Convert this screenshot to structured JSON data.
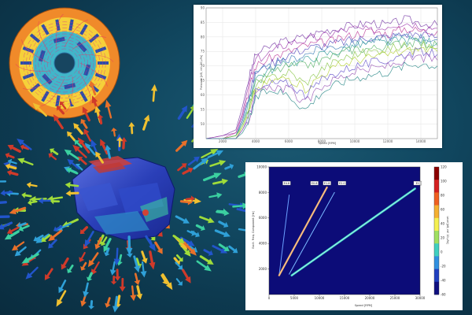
{
  "scene": {
    "background": [
      "#1c5a73",
      "#0a2c3e"
    ]
  },
  "motor_cross_section": {
    "colors": {
      "outer_ring": "#f08a2a",
      "inner_ring": "#f5d03a",
      "core": "#41b6c9",
      "magnets": "#2c4fa8",
      "flux_lines": "#d0308a"
    }
  },
  "vector_field": {
    "colors": [
      "#2255cc",
      "#2fa0d8",
      "#3bd0a0",
      "#9fdc3a",
      "#f0c030",
      "#e8702a",
      "#d03a2a"
    ]
  },
  "noise_order_plot": {
    "background": "#ffffff",
    "xlabel": "Speed [RPM]",
    "ylabel": "Pressure [dB, rel. 20 µPa]",
    "y_ticks": [
      "90",
      "85",
      "80",
      "75",
      "70",
      "65",
      "60",
      "55",
      "50"
    ],
    "x_ticks": [
      "2000",
      "4000",
      "6000",
      "8000",
      "10000",
      "12000",
      "14000"
    ],
    "line_colors": [
      "#7b3fa8",
      "#a23fb0",
      "#c0439c",
      "#5b4fc0",
      "#3f7fb8",
      "#3aa0a0",
      "#5bb46a",
      "#8cc84b",
      "#b6d23a",
      "#6a5acd",
      "#9b59b6",
      "#2e8b8b"
    ]
  },
  "campbell_diagram": {
    "background": "#0c0c78",
    "xlabel": "Speed [RPM]",
    "ylabel": "Excit. Freq. Component [Hz]",
    "colorbar_label": "Level [dB, ref. 20 µPa]",
    "colorbar_ticks": [
      "120",
      "100",
      "80",
      "60",
      "40",
      "20",
      "0",
      "-20",
      "-40",
      "-60"
    ],
    "x_ticks": [
      "0",
      "5000",
      "10000",
      "15000",
      "20000",
      "25000",
      "30000"
    ],
    "y_ticks": [
      "10000",
      "8000",
      "6000",
      "4000",
      "2000"
    ],
    "order_tags": [
      "E4.8",
      "E0.8",
      "E1.8",
      "E2.0",
      "E1"
    ]
  },
  "chart_data": {
    "type": "line",
    "xlabel": "Speed [RPM]",
    "ylabel": "Pressure [dB, rel. 20 µPa]",
    "xlim": [
      1000,
      15000
    ],
    "ylim": [
      45,
      90
    ],
    "grid": true,
    "x": [
      1000,
      2000,
      2800,
      3200,
      3600,
      4000,
      5000,
      6000,
      7000,
      8000,
      9000,
      10000,
      11000,
      12000,
      13000,
      14000,
      15000
    ],
    "series": [
      {
        "values": [
          45,
          46,
          48,
          56,
          66,
          74,
          77,
          79,
          80,
          82,
          83,
          84,
          85,
          84,
          86,
          85,
          84
        ]
      },
      {
        "values": [
          45,
          46,
          47,
          54,
          64,
          72,
          75,
          78,
          79,
          80,
          82,
          83,
          82,
          84,
          85,
          84,
          83
        ]
      },
      {
        "values": [
          45,
          45,
          47,
          53,
          62,
          70,
          73,
          75,
          77,
          78,
          79,
          81,
          82,
          81,
          83,
          82,
          82
        ]
      },
      {
        "values": [
          45,
          45,
          46,
          52,
          60,
          68,
          71,
          74,
          76,
          77,
          78,
          79,
          80,
          80,
          81,
          81,
          80
        ]
      },
      {
        "values": [
          45,
          45,
          46,
          51,
          59,
          67,
          70,
          72,
          74,
          76,
          77,
          78,
          79,
          79,
          80,
          80,
          79
        ]
      },
      {
        "values": [
          45,
          45,
          46,
          50,
          57,
          66,
          69,
          71,
          72,
          74,
          75,
          77,
          78,
          78,
          79,
          79,
          78
        ]
      },
      {
        "values": [
          45,
          45,
          46,
          50,
          56,
          64,
          68,
          70,
          70,
          72,
          74,
          76,
          76,
          77,
          78,
          78,
          77
        ]
      },
      {
        "values": [
          45,
          45,
          46,
          49,
          55,
          63,
          66,
          68,
          64,
          69,
          72,
          74,
          75,
          76,
          77,
          77,
          76
        ]
      },
      {
        "values": [
          45,
          45,
          45,
          49,
          54,
          62,
          65,
          66,
          62,
          67,
          70,
          72,
          73,
          74,
          75,
          76,
          75
        ]
      },
      {
        "values": [
          45,
          45,
          45,
          48,
          53,
          61,
          64,
          64,
          60,
          65,
          68,
          70,
          71,
          72,
          74,
          75,
          74
        ]
      },
      {
        "values": [
          45,
          45,
          45,
          48,
          52,
          60,
          63,
          62,
          57,
          63,
          66,
          68,
          69,
          70,
          72,
          73,
          72
        ]
      },
      {
        "values": [
          45,
          45,
          45,
          47,
          51,
          59,
          62,
          60,
          55,
          61,
          64,
          66,
          67,
          68,
          70,
          71,
          70
        ]
      }
    ]
  }
}
